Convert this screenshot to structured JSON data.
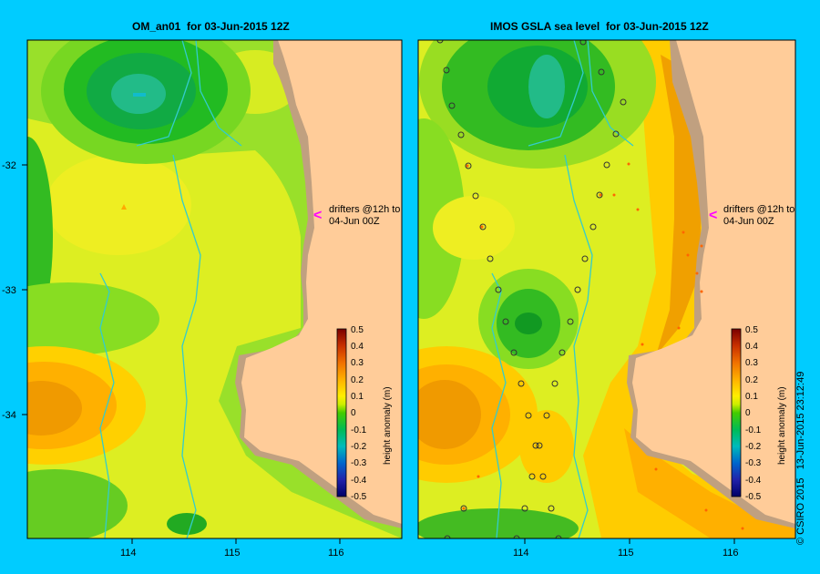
{
  "left_panel": {
    "title": "OM_an01  for 03-Jun-2015 12Z",
    "annotation": [
      "drifters @12h to",
      "04-Jun 00Z"
    ],
    "colorbar_label": "height anomaly (m)"
  },
  "right_panel": {
    "title": "IMOS GSLA sea level  for 03-Jun-2015 12Z",
    "annotation": [
      "drifters @12h to",
      "04-Jun 00Z"
    ],
    "colorbar_label": "height anomaly (m)"
  },
  "latitude_ticks": [
    "-32",
    "-33",
    "-34"
  ],
  "longitude_ticks": [
    "114",
    "115",
    "116"
  ],
  "colorbar_ticks": [
    "0.5",
    "0.4",
    "0.3",
    "0.2",
    "0.1",
    "0",
    "-0.1",
    "-0.2",
    "-0.3",
    "-0.4",
    "-0.5"
  ],
  "credit": "© CSIRO 2015   13-Jun-2015 23:12:49",
  "colors": {
    "background": "#00ccff",
    "land": "#ffcc99",
    "shelf": "#c0a080",
    "rivers": "#33cccc",
    "drifter_marker": "#ff00ff"
  }
}
